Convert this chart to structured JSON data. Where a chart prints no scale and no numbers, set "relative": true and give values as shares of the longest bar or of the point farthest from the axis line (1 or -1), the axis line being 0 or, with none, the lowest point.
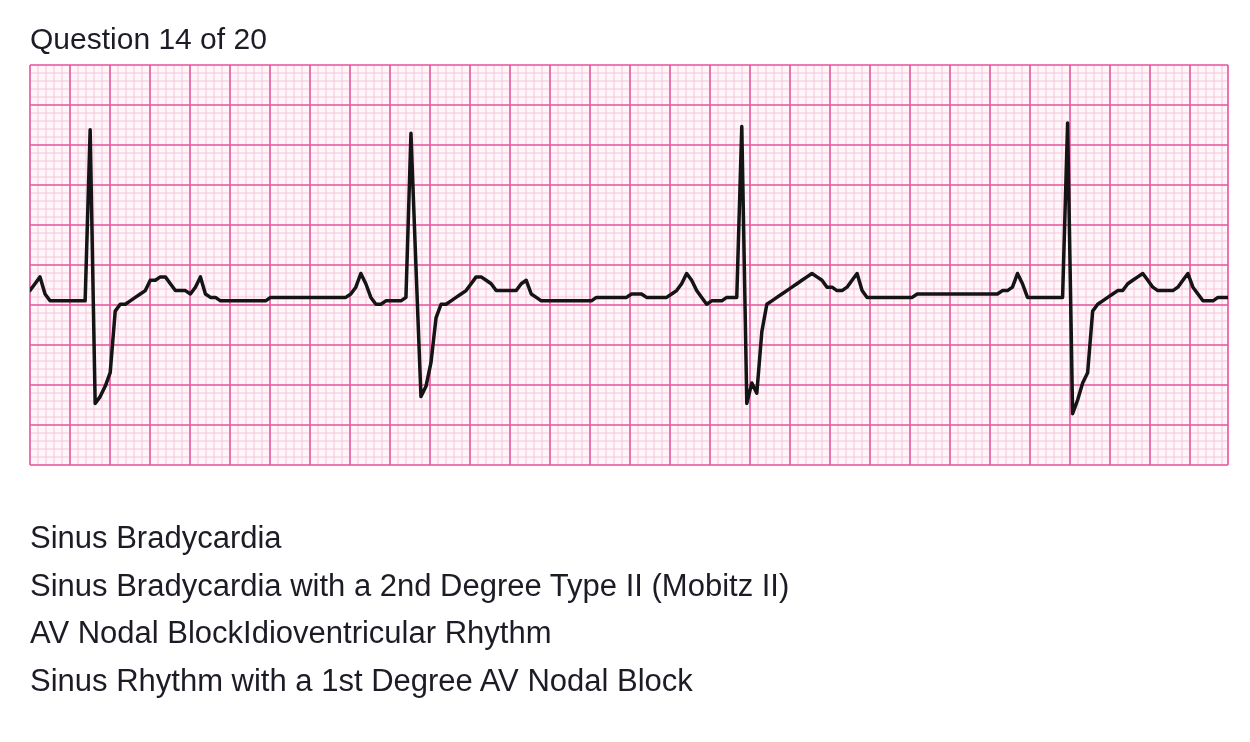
{
  "chart_data": {
    "type": "line",
    "title": "Question 14 of 20",
    "annotations": [
      "Sinus Bradycardia",
      "Sinus Bradycardia with a 2nd Degree Type II (Mobitz II)",
      "AV Nodal BlockIdioventricular Rhythm",
      "Sinus Rhythm with a 1st Degree AV Nodal Block"
    ],
    "relative": true,
    "grid": true,
    "categories": [
      null,
      null,
      null,
      null,
      null,
      null,
      null,
      null,
      null,
      null,
      null,
      null,
      null,
      null,
      null,
      null,
      null,
      null,
      null,
      null,
      null,
      null,
      null,
      null,
      null,
      null,
      null,
      null,
      null,
      null,
      null,
      null,
      null,
      null,
      null,
      null,
      null,
      null,
      null,
      null,
      null,
      null,
      null,
      null,
      null,
      null,
      null,
      null,
      null,
      null,
      null,
      null,
      null,
      null,
      null,
      null,
      null,
      null,
      null,
      null,
      null,
      null,
      null,
      null,
      null,
      null,
      null,
      null,
      null,
      null,
      null,
      null,
      null,
      null,
      null,
      null,
      null,
      null,
      null,
      null,
      null,
      null,
      null,
      null,
      null,
      null,
      null,
      null,
      null,
      null,
      null,
      null,
      null,
      null,
      null,
      null,
      null,
      null,
      null,
      null,
      null,
      null,
      null,
      null,
      null,
      null,
      null,
      null,
      null,
      null,
      null,
      null,
      null,
      null,
      null,
      null,
      null,
      null,
      null,
      null,
      null,
      null,
      null,
      null,
      null,
      null,
      null,
      null,
      null,
      null,
      null,
      null,
      null,
      null,
      null,
      null,
      null,
      null,
      null,
      null,
      null,
      null,
      null,
      null,
      null,
      null,
      null,
      null,
      null,
      null,
      null,
      null,
      null,
      null,
      null,
      null,
      null,
      null,
      null,
      null,
      null,
      null,
      null,
      null,
      null,
      null,
      null,
      null,
      null,
      null,
      null,
      null,
      null,
      null,
      null,
      null,
      null,
      null,
      null,
      null,
      null,
      null,
      null,
      null,
      null,
      null,
      null,
      null,
      null,
      null,
      null,
      null,
      null,
      null,
      null,
      null,
      null,
      null,
      null,
      null,
      null,
      null,
      null,
      null,
      null,
      null,
      null,
      null,
      null,
      null,
      null,
      null,
      null,
      null,
      null,
      null,
      null,
      null,
      null,
      null,
      null,
      null,
      null,
      null,
      null,
      null,
      null,
      null,
      null,
      null,
      null,
      null,
      null,
      null,
      null,
      null,
      null,
      null,
      null,
      null
    ],
    "series": [
      {
        "color": "#141414",
        "values": [
          0.51,
          0.53,
          0.55,
          0.5,
          0.48,
          0.48,
          0.48,
          0.48,
          0.48,
          0.48,
          0.48,
          0.48,
          0.98,
          0.18,
          0.2,
          0.23,
          0.27,
          0.45,
          0.47,
          0.47,
          0.48,
          0.49,
          0.5,
          0.51,
          0.54,
          0.54,
          0.55,
          0.55,
          0.53,
          0.51,
          0.51,
          0.51,
          0.5,
          0.52,
          0.55,
          0.5,
          0.49,
          0.49,
          0.48,
          0.48,
          0.48,
          0.48,
          0.48,
          0.48,
          0.48,
          0.48,
          0.48,
          0.48,
          0.49,
          0.49,
          0.49,
          0.49,
          0.49,
          0.49,
          0.49,
          0.49,
          0.49,
          0.49,
          0.49,
          0.49,
          0.49,
          0.49,
          0.49,
          0.49,
          0.5,
          0.52,
          0.56,
          0.53,
          0.49,
          0.47,
          0.47,
          0.48,
          0.48,
          0.48,
          0.48,
          0.49,
          0.97,
          0.58,
          0.2,
          0.23,
          0.3,
          0.43,
          0.47,
          0.47,
          0.48,
          0.49,
          0.5,
          0.51,
          0.53,
          0.55,
          0.55,
          0.54,
          0.53,
          0.51,
          0.51,
          0.51,
          0.51,
          0.51,
          0.53,
          0.54,
          0.5,
          0.49,
          0.48,
          0.48,
          0.48,
          0.48,
          0.48,
          0.48,
          0.48,
          0.48,
          0.48,
          0.48,
          0.48,
          0.49,
          0.49,
          0.49,
          0.49,
          0.49,
          0.49,
          0.49,
          0.5,
          0.5,
          0.5,
          0.49,
          0.49,
          0.49,
          0.49,
          0.49,
          0.5,
          0.51,
          0.53,
          0.56,
          0.54,
          0.51,
          0.49,
          0.47,
          0.48,
          0.48,
          0.48,
          0.49,
          0.49,
          0.49,
          0.99,
          0.18,
          0.24,
          0.21,
          0.39,
          0.47,
          0.48,
          0.49,
          0.5,
          0.51,
          0.52,
          0.53,
          0.54,
          0.55,
          0.56,
          0.55,
          0.54,
          0.52,
          0.52,
          0.51,
          0.51,
          0.52,
          0.54,
          0.56,
          0.51,
          0.49,
          0.49,
          0.49,
          0.49,
          0.49,
          0.49,
          0.49,
          0.49,
          0.49,
          0.49,
          0.5,
          0.5,
          0.5,
          0.5,
          0.5,
          0.5,
          0.5,
          0.5,
          0.5,
          0.5,
          0.5,
          0.5,
          0.5,
          0.5,
          0.5,
          0.5,
          0.5,
          0.51,
          0.51,
          0.52,
          0.56,
          0.53,
          0.49,
          0.49,
          0.49,
          0.49,
          0.49,
          0.49,
          0.49,
          0.49,
          1.0,
          0.15,
          0.19,
          0.24,
          0.27,
          0.45,
          0.47,
          0.48,
          0.49,
          0.5,
          0.51,
          0.51,
          0.53,
          0.54,
          0.55,
          0.56,
          0.54,
          0.52,
          0.51,
          0.51,
          0.51,
          0.51,
          0.52,
          0.54,
          0.56,
          0.52,
          0.5,
          0.48,
          0.48,
          0.48,
          0.49,
          0.49,
          0.49
        ]
      }
    ]
  }
}
